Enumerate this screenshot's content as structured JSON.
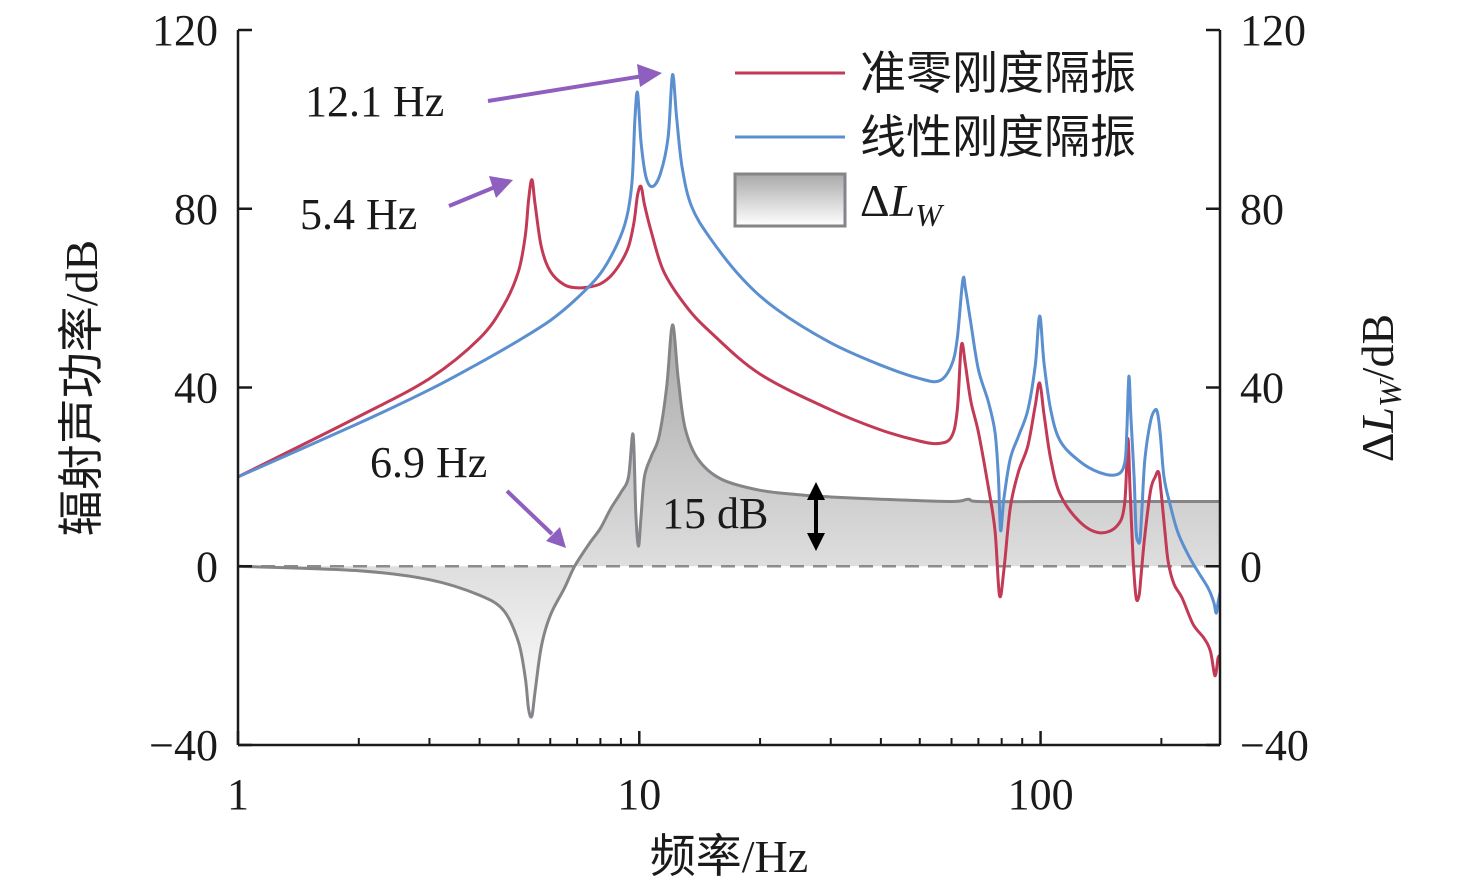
{
  "colors": {
    "quasi_zero": "#c23a55",
    "linear": "#5b8fcf",
    "delta_line": "#858589",
    "delta_fill_top": "#a9a9a9",
    "delta_fill_bottom": "#ffffff",
    "zero_dash": "#8c8c8c",
    "arrow_purple": "#8f5fbf",
    "axis": "#1a1a1a"
  },
  "chart_data": {
    "type": "line",
    "title": "",
    "xlabel": "频率/Hz",
    "ylabel_left": "辐射声功率/dB",
    "ylabel_right": "ΔL_W/dB",
    "ylabel_right_parts": {
      "delta": "Δ",
      "symbol": "L",
      "subscript": "W",
      "unit": "/dB"
    },
    "x_scale": "log",
    "xlim": [
      1,
      280
    ],
    "ylim": [
      -40,
      120
    ],
    "x_ticks": [
      1,
      10,
      100
    ],
    "x_tick_labels": [
      "1",
      "10",
      "100"
    ],
    "y_ticks": [
      -40,
      0,
      40,
      80,
      120
    ],
    "y_tick_labels": [
      "−40",
      "0",
      "40",
      "80",
      "120"
    ],
    "grid": false,
    "legend_position": "top-right",
    "series": [
      {
        "name": "准零刚度隔振",
        "color_key": "quasi_zero",
        "x": [
          1,
          2,
          3,
          4,
          4.6,
          5.0,
          5.2,
          5.3,
          5.4,
          5.5,
          5.7,
          6.0,
          6.5,
          7,
          7.5,
          8,
          8.5,
          9,
          9.4,
          9.7,
          9.9,
          10.1,
          10.3,
          10.7,
          11.5,
          13,
          15,
          20,
          30,
          40,
          50,
          56,
          60,
          62,
          63.5,
          65,
          67,
          70,
          74,
          77,
          79,
          81,
          84,
          88,
          93,
          97,
          99.5,
          102,
          106,
          112,
          125,
          140,
          155,
          162,
          165,
          167,
          170,
          173,
          176,
          178,
          182,
          188,
          193,
          197,
          200,
          204,
          208,
          215,
          225,
          240,
          255,
          265,
          272,
          277,
          280
        ],
        "values": [
          20,
          33.5,
          42,
          51,
          58.5,
          66,
          74,
          82,
          86.5,
          81,
          71.5,
          66,
          63,
          62.3,
          62.5,
          63.2,
          65,
          68,
          71.5,
          77,
          83,
          85,
          81,
          75,
          66,
          58.5,
          52.5,
          43,
          35,
          30.5,
          28,
          27.5,
          29,
          35,
          49.5,
          45,
          37,
          30,
          18,
          8,
          -6.5,
          -1,
          13,
          21,
          27,
          36,
          41,
          34,
          24,
          16,
          10,
          7.5,
          9,
          14,
          28.5,
          18,
          2,
          -7,
          -6.5,
          -2,
          7,
          17,
          20,
          21,
          16,
          8,
          1,
          -4,
          -7,
          -13,
          -16,
          -19,
          -24.5,
          -20.5,
          -20
        ]
      },
      {
        "name": "线性刚度隔振",
        "color_key": "linear",
        "x": [
          1,
          2,
          3,
          4,
          5,
          6,
          7,
          8,
          8.8,
          9.3,
          9.6,
          9.75,
          9.9,
          10.1,
          10.4,
          10.8,
          11.3,
          11.8,
          12.1,
          12.4,
          12.8,
          13.5,
          15,
          18,
          22,
          30,
          40,
          50,
          56,
          60,
          62,
          64,
          65,
          67,
          70,
          74,
          77,
          78.5,
          79.5,
          81,
          84,
          88,
          93,
          97,
          99.5,
          102,
          106,
          112,
          125,
          140,
          155,
          162,
          164,
          166,
          168,
          171,
          173,
          175,
          177,
          179,
          182,
          188,
          193,
          196,
          199,
          203,
          210,
          220,
          235,
          250,
          262,
          270,
          274,
          277,
          280
        ],
        "values": [
          20,
          32,
          39.5,
          45.5,
          50.5,
          55,
          60,
          65.5,
          72,
          78,
          86.5,
          100,
          106,
          95,
          87,
          85,
          88,
          96,
          110,
          100,
          89,
          80.5,
          73.5,
          64.5,
          57.5,
          50,
          45,
          42,
          41.5,
          45,
          51,
          64,
          62,
          54.5,
          44,
          37,
          30,
          20,
          8,
          15,
          24,
          29,
          35,
          45,
          56,
          45.5,
          35,
          28,
          23.5,
          21,
          20.5,
          23,
          30,
          42.5,
          33,
          20,
          8,
          5.5,
          6,
          13,
          24,
          32.5,
          35,
          34,
          29,
          20,
          14,
          7.5,
          2,
          -2,
          -5,
          -8,
          -10.5,
          -8,
          -6
        ]
      },
      {
        "name": "ΔL_W",
        "legend_label": "ΔL_W",
        "color_key": "delta_line",
        "fill_to_zero": true,
        "x": [
          1,
          2,
          3,
          4,
          4.6,
          5.0,
          5.2,
          5.3,
          5.4,
          5.5,
          5.7,
          6.0,
          6.5,
          6.9,
          7.5,
          8,
          8.5,
          9,
          9.4,
          9.65,
          9.8,
          9.95,
          10.1,
          10.3,
          10.7,
          11.2,
          11.7,
          12.1,
          12.5,
          13,
          14,
          16,
          20,
          25,
          30,
          40,
          60,
          66,
          70,
          100,
          150,
          200,
          280
        ],
        "values": [
          0,
          -1,
          -3,
          -6.5,
          -10,
          -17,
          -25,
          -32,
          -33.5,
          -28,
          -18,
          -11,
          -5,
          0,
          5,
          8.5,
          13,
          16.5,
          20,
          29.5,
          12,
          4.5,
          11,
          20,
          24.5,
          29,
          40,
          54,
          42,
          31,
          24,
          19.5,
          17,
          16,
          15.5,
          15,
          14.5,
          15,
          14.5,
          14.5,
          14.5,
          14.5,
          14.5
        ]
      }
    ],
    "annotations": [
      {
        "text": "12.1 Hz",
        "x": 12.1,
        "y": 110
      },
      {
        "text": "5.4 Hz",
        "x": 5.4,
        "y": 86.5
      },
      {
        "text": "6.9 Hz",
        "x": 6.9,
        "y": 0
      },
      {
        "text": "15 dB",
        "x": 28,
        "y_from": 0,
        "y_to": 15
      }
    ]
  }
}
